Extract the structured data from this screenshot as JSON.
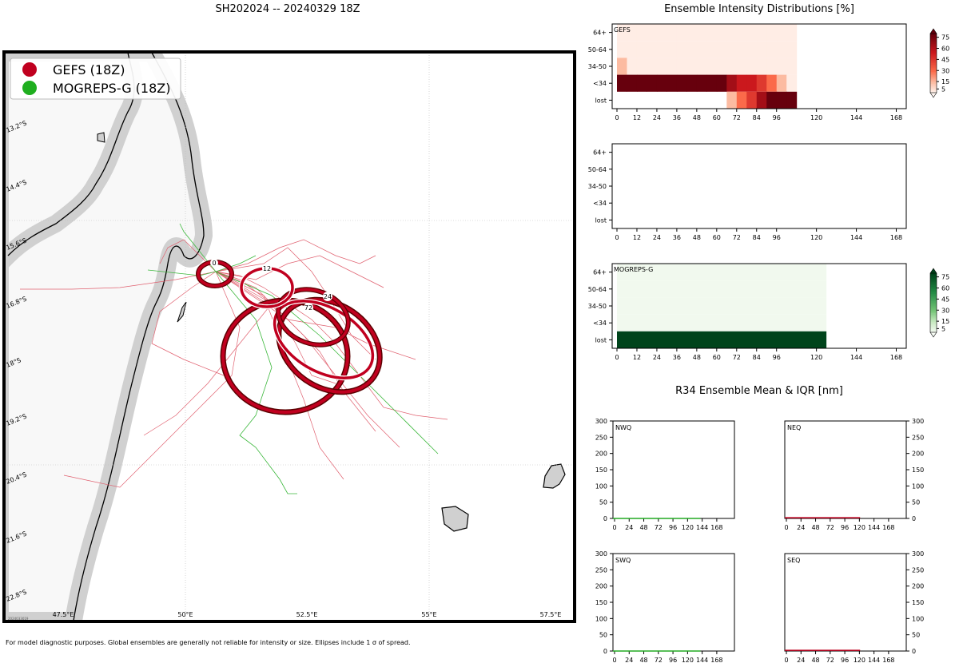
{
  "page": {
    "title": "SH202024 -- 20240329 18Z",
    "footnote": "For model diagnostic purposes. Global ensembles are generally not reliable for intensity or size. Ellipses include 1 σ of spread.",
    "map_stamp": "2024033019"
  },
  "map": {
    "legend": [
      {
        "label": "GEFS (18Z)",
        "color": "#c0001f"
      },
      {
        "label": "MOGREPS-G (18Z)",
        "color": "#22aa22"
      }
    ],
    "lat_labels": [
      "13.2°S",
      "14.4°S",
      "15.6°S",
      "16.8°S",
      "18°S",
      "19.2°S",
      "20.4°S",
      "21.6°S",
      "22.8°S"
    ],
    "lon_labels": [
      "47.5°E",
      "50°E",
      "52.5°E",
      "55°E",
      "57.5°E"
    ],
    "ellipse_tags": [
      "0",
      "12",
      "24",
      "72"
    ],
    "colors": {
      "land": "#f8f8f8",
      "island": "#d0d0d0",
      "gefs": "#c0001f",
      "mogreps": "#3cb83c",
      "ellipse_edge": "#5a0000"
    }
  },
  "intensity": {
    "title": "Ensemble Intensity Distributions [%]",
    "categories": [
      "64+",
      "50-64",
      "34-50",
      "<34",
      "lost"
    ],
    "xticks": [
      "0",
      "12",
      "24",
      "36",
      "48",
      "60",
      "72",
      "84",
      "96",
      "120",
      "144",
      "168"
    ],
    "panel_labels": [
      "GEFS",
      "",
      "MOGREPS-G"
    ],
    "colorbar_ticks": [
      "75",
      "60",
      "45",
      "30",
      "15",
      "5"
    ]
  },
  "chart_data": [
    {
      "type": "heatmap",
      "title": "GEFS",
      "x_unit": "forecast hour",
      "x_bins": [
        0,
        6,
        12,
        18,
        24,
        30,
        36,
        42,
        48,
        54,
        60,
        66,
        72,
        78,
        84,
        90,
        96,
        102
      ],
      "y": [
        "64+",
        "50-64",
        "34-50",
        "<34",
        "lost"
      ],
      "values": {
        "64+": [
          2,
          2,
          2,
          2,
          2,
          2,
          2,
          2,
          2,
          2,
          2,
          2,
          2,
          2,
          2,
          2,
          2,
          2
        ],
        "50-64": [
          2,
          2,
          2,
          2,
          2,
          2,
          2,
          2,
          2,
          2,
          2,
          2,
          2,
          2,
          2,
          2,
          2,
          2
        ],
        "34-50": [
          15,
          2,
          2,
          2,
          2,
          2,
          2,
          2,
          2,
          2,
          2,
          2,
          2,
          2,
          2,
          2,
          2,
          2
        ],
        "<34": [
          85,
          98,
          98,
          98,
          98,
          98,
          98,
          98,
          98,
          98,
          98,
          65,
          55,
          55,
          45,
          30,
          15,
          2
        ],
        "lost": [
          0,
          0,
          0,
          0,
          0,
          0,
          0,
          0,
          0,
          0,
          0,
          15,
          30,
          45,
          65,
          80,
          85,
          90
        ]
      }
    },
    {
      "type": "heatmap",
      "title": "",
      "x_unit": "forecast hour",
      "y": [
        "64+",
        "50-64",
        "34-50",
        "<34",
        "lost"
      ],
      "values": {}
    },
    {
      "type": "heatmap",
      "title": "MOGREPS-G",
      "x_unit": "forecast hour",
      "x_range": [
        0,
        126
      ],
      "y": [
        "64+",
        "50-64",
        "34-50",
        "<34",
        "lost"
      ],
      "values": {
        "64+": 2,
        "50-64": 2,
        "34-50": 2,
        "<34": 2,
        "lost": 95
      }
    },
    {
      "type": "bar",
      "title": "R34 Ensemble Mean & IQR [nm]",
      "panels": [
        "NWQ",
        "NEQ",
        "SWQ",
        "SEQ"
      ],
      "xticks": [
        "0",
        "24",
        "48",
        "72",
        "96",
        "120",
        "144",
        "168"
      ],
      "yticks": [
        "300",
        "250",
        "200",
        "150",
        "100",
        "50",
        "0"
      ],
      "ylim": [
        0,
        300
      ],
      "values": {
        "NWQ": 0,
        "NEQ": 2,
        "SWQ": 0,
        "SEQ": 2
      }
    }
  ]
}
